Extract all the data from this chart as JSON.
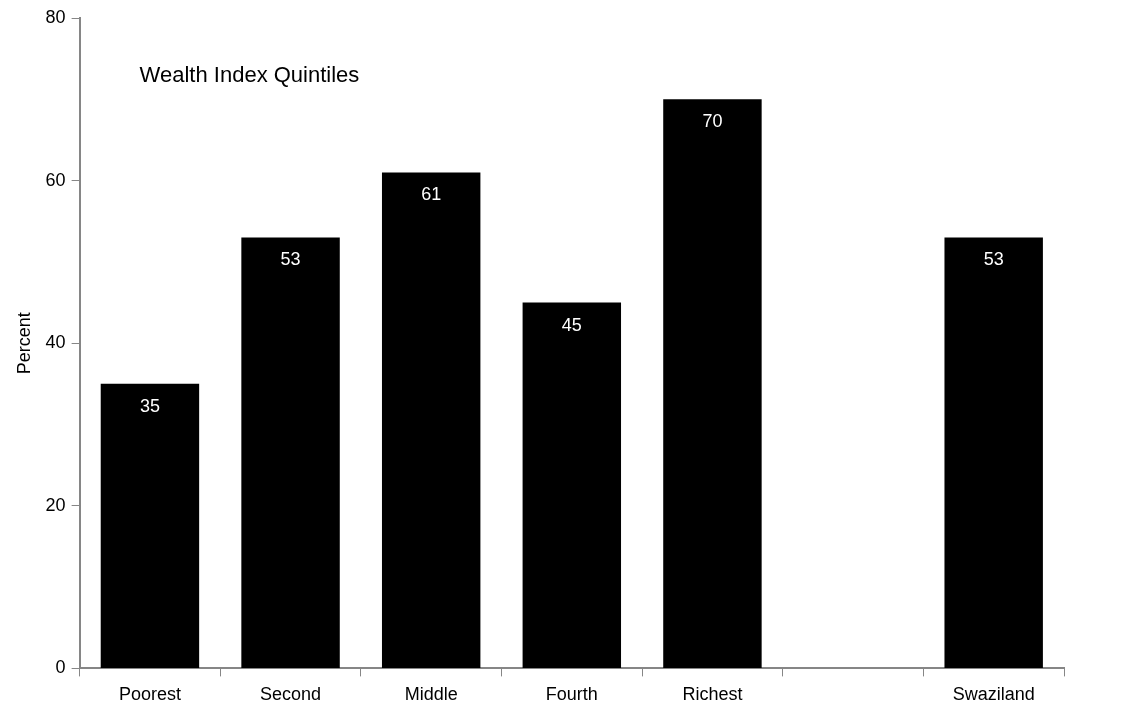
{
  "chart_data": {
    "type": "bar",
    "ylabel": "Percent",
    "categories": [
      "Poorest",
      "Second",
      "Middle",
      "Fourth",
      "Richest",
      null,
      "Swaziland"
    ],
    "values": [
      35,
      53,
      61,
      45,
      70,
      null,
      53
    ],
    "color": "#000000",
    "ylim": [
      0,
      80
    ],
    "yticks": [
      0,
      20,
      40,
      60,
      80
    ],
    "grid": false,
    "legend": false,
    "data_labels": true,
    "annotations": [
      "Wealth Index Quintiles"
    ]
  }
}
